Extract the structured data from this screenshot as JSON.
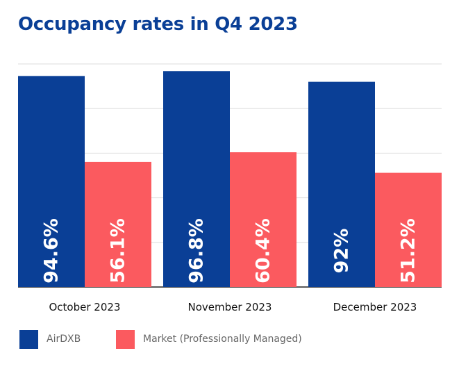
{
  "chart_data": {
    "type": "bar",
    "title": "Occupancy rates in Q4 2023",
    "categories": [
      "October 2023",
      "November 2023",
      "December 2023"
    ],
    "series": [
      {
        "name": "AirDXB",
        "values": [
          94.6,
          96.8,
          92
        ],
        "labels": [
          "94.6%",
          "96.8%",
          "92%"
        ],
        "color": "#0a3f96"
      },
      {
        "name": "Market (Professionally Managed)",
        "values": [
          56.1,
          60.4,
          51.2
        ],
        "labels": [
          "56.1%",
          "60.4%",
          "51.2%"
        ],
        "color": "#fb5a5f"
      }
    ],
    "ylim": [
      0,
      100
    ],
    "grid": true,
    "legend_position": "bottom-left",
    "label_color": "#ffffff",
    "grid_color": "#dddddd",
    "axis_color": "#222222"
  }
}
